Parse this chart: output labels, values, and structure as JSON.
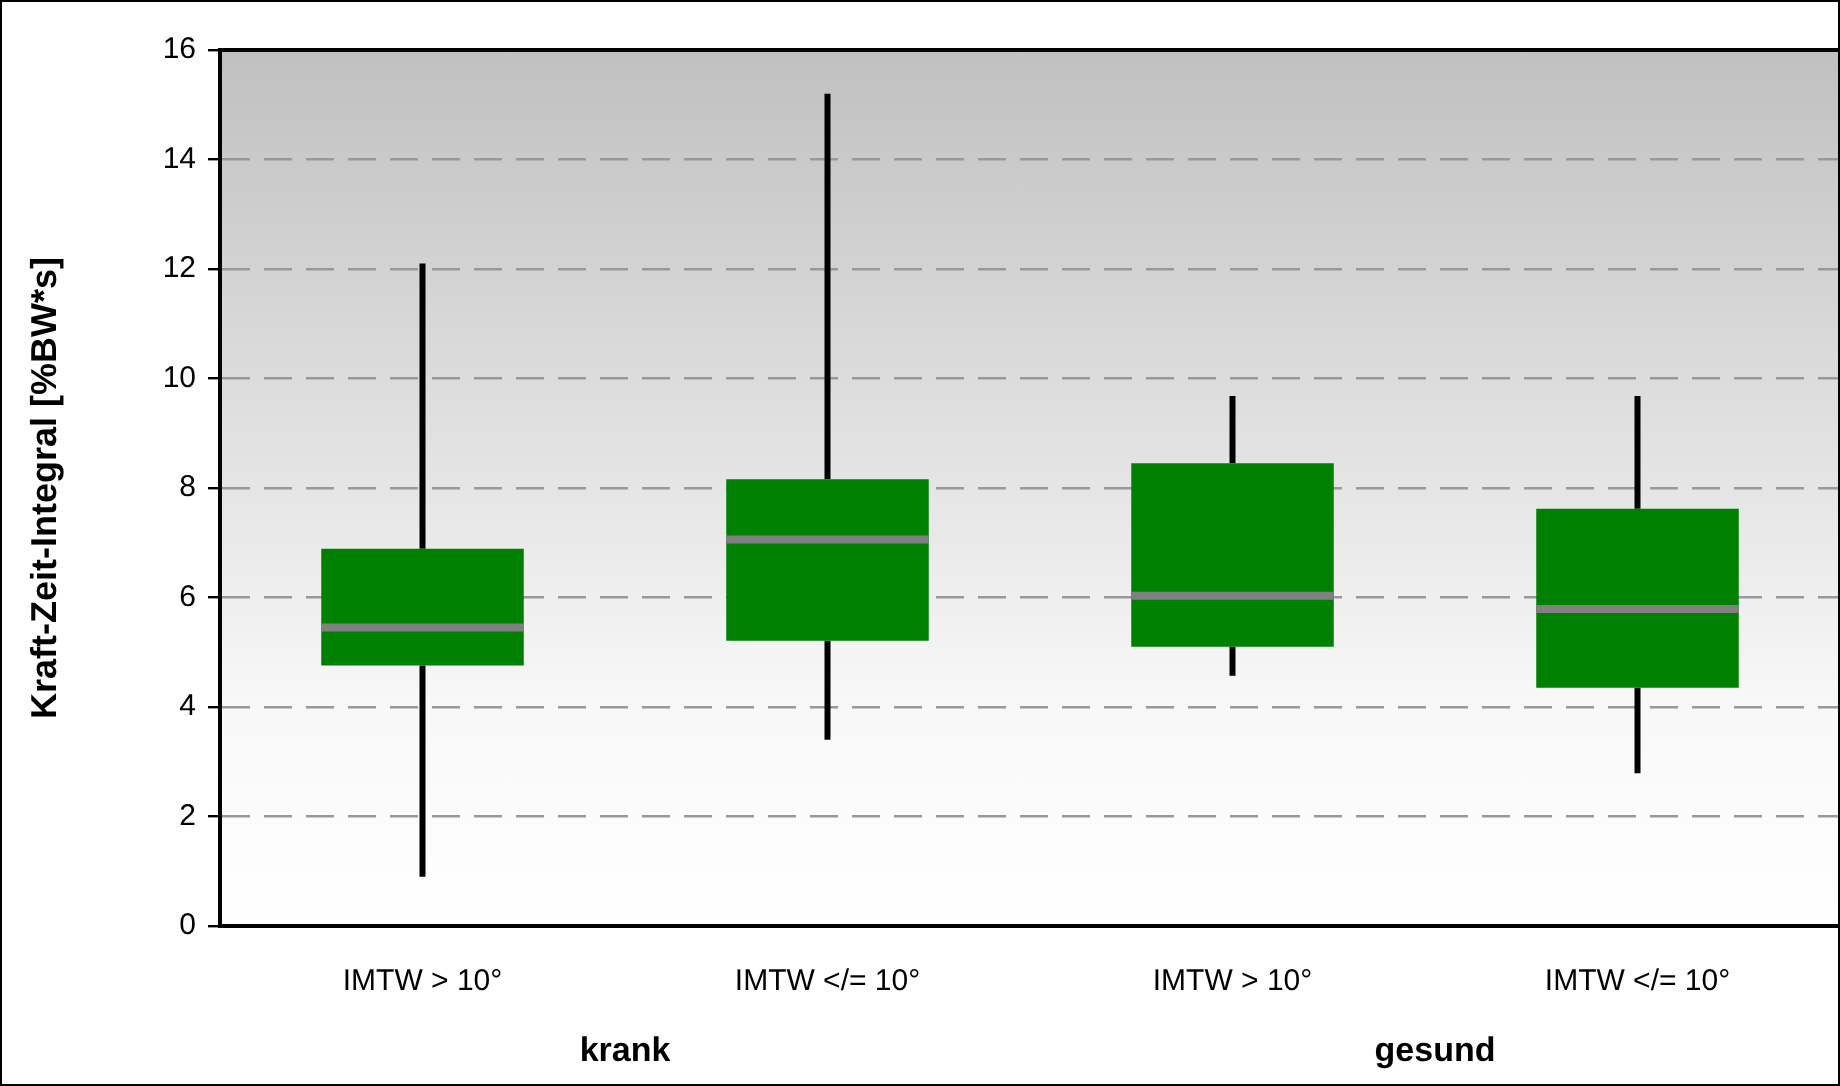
{
  "chart_data": {
    "type": "box",
    "ylabel": "Kraft-Zeit-Integral [%BW*s]",
    "categories": [
      "IMTW > 10°",
      "IMTW </= 10°",
      "IMTW > 10°",
      "IMTW </= 10°"
    ],
    "boxes": [
      {
        "low": 0.9,
        "q1": 4.76,
        "median": 5.45,
        "q3": 6.89,
        "high": 12.1
      },
      {
        "low": 3.4,
        "q1": 5.21,
        "median": 7.06,
        "q3": 8.16,
        "high": 15.2
      },
      {
        "low": 4.57,
        "q1": 5.1,
        "median": 6.03,
        "q3": 8.45,
        "high": 9.68
      },
      {
        "low": 2.79,
        "q1": 4.35,
        "median": 5.79,
        "q3": 7.62,
        "high": 9.68
      }
    ],
    "color": "#008000",
    "ylim": [
      0,
      16
    ],
    "yticks": [
      0,
      2,
      4,
      6,
      8,
      10,
      12,
      14,
      16
    ],
    "grid": "y",
    "legend": false,
    "annotations": [
      "krank",
      "gesund"
    ]
  }
}
